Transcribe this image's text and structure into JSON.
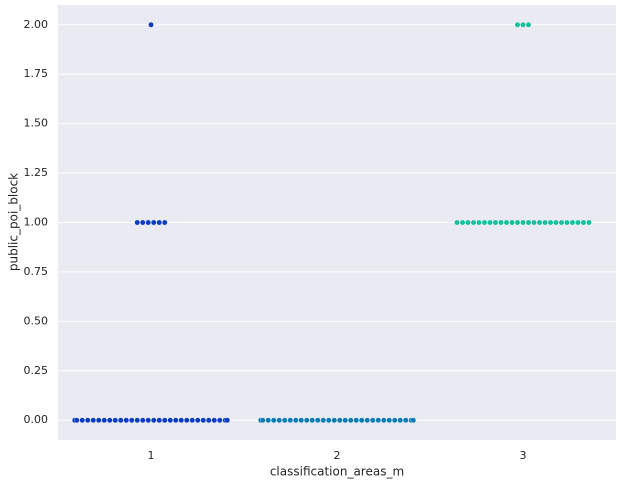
{
  "chart_data": {
    "type": "swarm",
    "xlabel": "classification_areas_m",
    "ylabel": "public_poi_block",
    "categories": [
      "1",
      "2",
      "3"
    ],
    "groups": [
      {
        "color": "#0b3cc1",
        "values": [
          0,
          0,
          0,
          0,
          0,
          0,
          0,
          0,
          0,
          0,
          0,
          0,
          0,
          0,
          0,
          0,
          0,
          0,
          0,
          0,
          0,
          0,
          0,
          0,
          0,
          0,
          0,
          0,
          0,
          0,
          1,
          1,
          1,
          1,
          1,
          1,
          2
        ]
      },
      {
        "color": "#0a7bb3",
        "values": [
          0,
          0,
          0,
          0,
          0,
          0,
          0,
          0,
          0,
          0,
          0,
          0,
          0,
          0,
          0,
          0,
          0,
          0,
          0,
          0,
          0,
          0,
          0,
          0,
          0,
          0,
          0,
          0,
          0,
          0
        ]
      },
      {
        "color": "#14bf9b",
        "values": [
          1,
          1,
          1,
          1,
          1,
          1,
          1,
          1,
          1,
          1,
          1,
          1,
          1,
          1,
          1,
          1,
          1,
          1,
          1,
          1,
          1,
          1,
          1,
          1,
          1,
          2,
          2,
          2
        ]
      }
    ],
    "ylim": [
      -0.1,
      2.1
    ],
    "yticks": [
      {
        "value": 0,
        "label": "0.00"
      },
      {
        "value": 0.25,
        "label": "0.25"
      },
      {
        "value": 0.5,
        "label": "0.50"
      },
      {
        "value": 0.75,
        "label": "0.75"
      },
      {
        "value": 1,
        "label": "1.00"
      },
      {
        "value": 1.25,
        "label": "1.25"
      },
      {
        "value": 1.5,
        "label": "1.50"
      },
      {
        "value": 1.75,
        "label": "1.75"
      },
      {
        "value": 2,
        "label": "2.00"
      }
    ],
    "grid": true
  }
}
